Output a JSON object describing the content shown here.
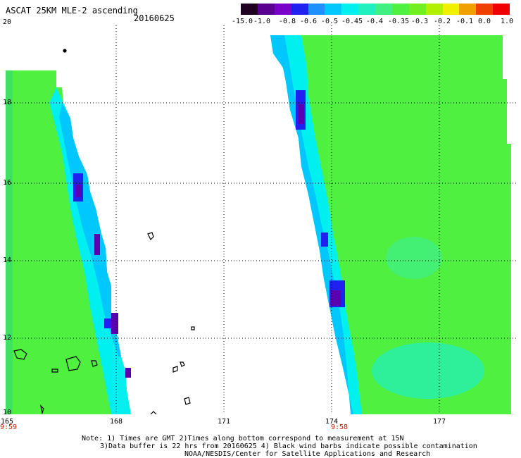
{
  "title": "ASCAT 25KM MLE-2 ascending",
  "date": "20160625",
  "legend": {
    "colors": [
      "#200020",
      "#5a0090",
      "#7800c8",
      "#2020f0",
      "#1e90ff",
      "#00c8ff",
      "#00f0f0",
      "#20f0c0",
      "#40f080",
      "#50f040",
      "#70f020",
      "#b0f000",
      "#f0f000",
      "#f0a000",
      "#f04000",
      "#f00000"
    ],
    "labels": [
      "-15.0",
      "-1.0",
      "-0.8",
      "-0.6",
      "-0.5",
      "-0.45",
      "-0.4",
      "-0.35",
      "-0.3",
      "-0.2",
      "-0.1",
      "0.0",
      "1.0"
    ]
  },
  "axes": {
    "y_labels": [
      "20",
      "18",
      "16",
      "14",
      "12",
      "10"
    ],
    "x_labels": [
      "165",
      "168",
      "171",
      "174",
      "177"
    ],
    "x_times": {
      "left": "9:59",
      "right": "9:58"
    }
  },
  "notes": {
    "line1": "Note: 1) Times are GMT 2)Times along bottom correspond to measurement at 15N",
    "line2": "3)Data buffer is 22 hrs from 20160625 4) Black wind barbs indicate possible contamination",
    "line3": "NOAA/NESDIS/Center for Satellite Applications and Research"
  },
  "colors": {
    "swath_green": "#50f040",
    "light_green": "#70f040",
    "aqua": "#20f0c0",
    "cyan": "#00f0f0",
    "sky": "#00c8ff",
    "blue": "#2020f0",
    "purple": "#5a00b0",
    "time_label": "#c02000"
  }
}
